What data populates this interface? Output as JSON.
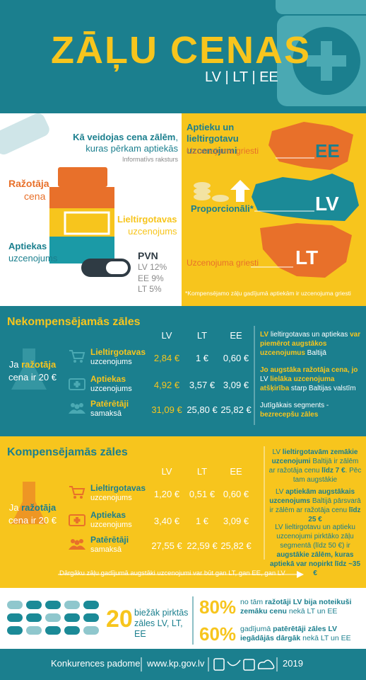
{
  "header": {
    "title": "ZĀĻU CENAS",
    "subtitle": "LV | LT | EE"
  },
  "formation": {
    "heading": [
      {
        "text": "Kā veidojas cena zālēm",
        "emphasis": true
      },
      {
        "text": ", kuras pērkam aptiekās"
      }
    ],
    "note": "Informatīvs raksturs",
    "producer": [
      {
        "text": "Ražotāja",
        "emphasis": true
      },
      {
        "text": "cena"
      }
    ],
    "wholesaler": [
      {
        "text": "Lieltirgotavas",
        "emphasis": true
      },
      {
        "text": "uzcenojums"
      }
    ],
    "pharmacy": [
      {
        "text": "Aptiekas",
        "emphasis": true
      },
      {
        "text": "uzcenojums"
      }
    ],
    "vat": {
      "label": "PVN",
      "rates": [
        "LV 12%",
        "EE 9%",
        "LT 5%"
      ]
    }
  },
  "markups": {
    "heading": "Aptieku un lieltirgotavu uzcenojumi",
    "ee_label": "Uzcenojuma griesti",
    "ee": "EE",
    "lv_label": "Proporcionāli*",
    "lv": "LV",
    "lt_label": "Uzcenojuma griesti",
    "lt": "LT",
    "footnote": "*Kompensējamo zāļu gadījumā aptiekām ir uzcenojuma griesti"
  },
  "tables": [
    {
      "title": "Nekompensējamās zāles",
      "intro": [
        {
          "text": "Ja "
        },
        {
          "text": "ražotāja",
          "emphasis": true
        },
        {
          "text": " cena ir 20 €"
        }
      ],
      "columns": [
        "LV",
        "LT",
        "EE"
      ],
      "rows": [
        {
          "name": "Lieltirgotavas",
          "sub": "uzcenojums",
          "values": [
            "2,84 €",
            "1 €",
            "0,60 €"
          ]
        },
        {
          "name": "Aptiekas",
          "sub": "uzcenojums",
          "values": [
            "4,92 €",
            "3,57 €",
            "3,09 €"
          ]
        },
        {
          "name": "Patērētāji",
          "sub": "samaksā",
          "values": [
            "31,09 €",
            "25,80 €",
            "25,82 €"
          ]
        }
      ],
      "notes": [
        [
          {
            "text": "LV",
            "emphasis": true
          },
          {
            "text": " lieltirgotavas un aptiekas "
          },
          {
            "text": "var piemērot augstākos uzcenojumus",
            "emphasis": true
          },
          {
            "text": " Baltijā"
          }
        ],
        [
          {
            "text": "Jo augstāka ražotāja cena, jo ",
            "emphasis": true
          },
          {
            "text": "LV "
          },
          {
            "text": "lielāka uzcenojuma atšķirība",
            "emphasis": true
          },
          {
            "text": " starp Baltijas valstīm"
          }
        ],
        [
          {
            "text": "Jutīgākais segments - "
          },
          {
            "text": "bezrecepšu zāles",
            "emphasis": true
          }
        ]
      ]
    },
    {
      "title": "Kompensējamās zāles",
      "intro": [
        {
          "text": "Ja "
        },
        {
          "text": "ražotāja",
          "emphasis": true
        },
        {
          "text": " cena ir 20 €"
        }
      ],
      "columns": [
        "LV",
        "LT",
        "EE"
      ],
      "rows": [
        {
          "name": "Lieltirgotavas",
          "sub": "uzcenojums",
          "values": [
            "1,20 €",
            "0,51 €",
            "0,60 €"
          ]
        },
        {
          "name": "Aptiekas",
          "sub": "uzcenojums",
          "values": [
            "3,40 €",
            "1 €",
            "3,09 €"
          ]
        },
        {
          "name": "Patērētāji",
          "sub": "samaksā",
          "values": [
            "27,55 €",
            "22,59 €",
            "25,82 €"
          ]
        }
      ],
      "notes": [
        [
          {
            "text": "LV "
          },
          {
            "text": "lieltirgotavām zemākie uzcenojumi",
            "emphasis": true
          },
          {
            "text": " Baltijā ir zālēm ar ražotāja cenu "
          },
          {
            "text": "līdz 7 €",
            "emphasis": true
          },
          {
            "text": ". Pēc tam augstākie"
          }
        ],
        [
          {
            "text": "LV "
          },
          {
            "text": "aptiekām augstākais uzcenojums",
            "emphasis": true
          },
          {
            "text": " Baltijā pārsvarā ir zālēm ar ražotāja cenu "
          },
          {
            "text": "līdz 25 €",
            "emphasis": true
          }
        ],
        [
          {
            "text": "LV lieltirgotavu un aptieku uzcenojumi pirktāko zāļu segmentā (līdz 50 €) ir "
          },
          {
            "text": "augstākie zālēm, kuras aptiekā var nopirkt līdz ~35 €",
            "emphasis": true
          }
        ]
      ],
      "footer": "Dārgāku zāļu gadījumā augstāki uzcenojumi var būt gan LT, gan EE, gan LV"
    }
  ],
  "summary": {
    "count": "20",
    "count_text": "biežāk pirktās zāles LV, LT, EE",
    "facts": [
      {
        "percent": "80%",
        "text": [
          {
            "text": "no tām "
          },
          {
            "text": "ražotāji LV bija noteikuši zemāku cenu",
            "emphasis": true
          },
          {
            "text": " nekā LT un EE"
          }
        ]
      },
      {
        "percent": "60%",
        "text": [
          {
            "text": "gadījumā "
          },
          {
            "text": "patērētāji zāles LV iegādājās dārgāk",
            "emphasis": true
          },
          {
            "text": " nekā LT un EE"
          }
        ]
      }
    ]
  },
  "footer": {
    "org": "Konkurences padome",
    "url": "www.kp.gov.lv",
    "year": "2019"
  }
}
